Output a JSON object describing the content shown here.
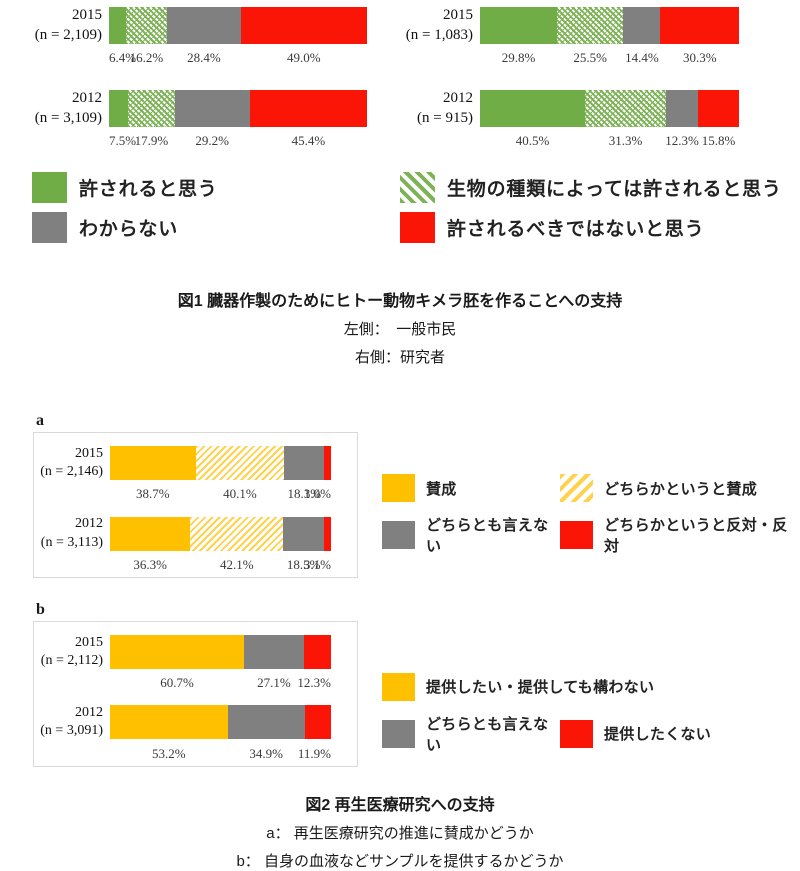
{
  "palette": {
    "green": "#70AD47",
    "green_hatch_stripe": "#7DB356",
    "gray": "#808080",
    "red": "#FB1507",
    "yellow": "#FFC000",
    "yellow_hatch_stripe": "#FFD24D",
    "box_border": "#D9D9D9",
    "pct_text": "#3A3A3A"
  },
  "figure1": {
    "caption": {
      "title": "図1 臓器作製のためにヒトー動物キメラ胚を作ることへの支持",
      "line2": "左側：　一般市民",
      "line3": "右側：研究者"
    },
    "legend": [
      {
        "swatch": "green",
        "label": "許されると思う"
      },
      {
        "swatch": "green-hatch",
        "label": "生物の種類によっては許されると思う"
      },
      {
        "swatch": "gray",
        "label": "わからない"
      },
      {
        "swatch": "red",
        "label": "許されるべきではないと思う"
      }
    ]
  },
  "figure2": {
    "subfig_a_label": "a",
    "subfig_b_label": "b",
    "caption": {
      "title": "図2 再生医療研究への支持",
      "line_a": "a： 再生医療研究の推進に賛成かどうか",
      "line_b": "b： 自身の血液などサンプルを提供するかどうか"
    },
    "legend_a": [
      {
        "swatch": "yellow",
        "label": "賛成"
      },
      {
        "swatch": "yellow-hatch",
        "label": "どちらかというと賛成"
      },
      {
        "swatch": "gray",
        "label": "どちらとも言えない"
      },
      {
        "swatch": "red",
        "label": "どちらかというと反対・反対"
      }
    ],
    "legend_b": [
      {
        "swatch": "yellow",
        "label": "提供したい・提供しても構わない",
        "span": 2
      },
      {
        "swatch": "gray",
        "label": "どちらとも言えない"
      },
      {
        "swatch": "red",
        "label": "提供したくない"
      }
    ]
  },
  "chart_data": [
    {
      "id": "fig1-left",
      "type": "bar",
      "stacked": true,
      "orientation": "horizontal",
      "group": "一般市民",
      "unit": "%",
      "xlim": [
        0,
        100
      ],
      "segment_styles": [
        "green",
        "green-hatch",
        "gray",
        "red"
      ],
      "segment_names": [
        "許されると思う",
        "生物の種類によっては許されると思う",
        "わからない",
        "許されるべきではないと思う"
      ],
      "rows": [
        {
          "year": "2015",
          "n": "(n = 2,109)",
          "values": [
            6.4,
            16.2,
            28.4,
            49.0
          ]
        },
        {
          "year": "2012",
          "n": "(n = 3,109)",
          "values": [
            7.5,
            17.9,
            29.2,
            45.4
          ]
        }
      ]
    },
    {
      "id": "fig1-right",
      "type": "bar",
      "stacked": true,
      "orientation": "horizontal",
      "group": "研究者",
      "unit": "%",
      "xlim": [
        0,
        100
      ],
      "segment_styles": [
        "green",
        "green-hatch",
        "gray",
        "red"
      ],
      "segment_names": [
        "許されると思う",
        "生物の種類によっては許されると思う",
        "わからない",
        "許されるべきではないと思う"
      ],
      "rows": [
        {
          "year": "2015",
          "n": "(n = 1,083)",
          "values": [
            29.8,
            25.5,
            14.4,
            30.3
          ]
        },
        {
          "year": "2012",
          "n": "(n = 915)",
          "values": [
            40.5,
            31.3,
            12.3,
            15.8
          ]
        }
      ]
    },
    {
      "id": "fig2-a",
      "type": "bar",
      "stacked": true,
      "orientation": "horizontal",
      "group": "再生医療研究の推進に賛成かどうか",
      "unit": "%",
      "xlim": [
        0,
        100
      ],
      "segment_styles": [
        "yellow",
        "yellow-hatch",
        "gray",
        "red"
      ],
      "segment_names": [
        "賛成",
        "どちらかというと賛成",
        "どちらとも言えない",
        "どちらかというと反対・反対"
      ],
      "rows": [
        {
          "year": "2015",
          "n": "(n = 2,146)",
          "values": [
            38.7,
            40.1,
            18.1,
            3.0
          ]
        },
        {
          "year": "2012",
          "n": "(n = 3,113)",
          "values": [
            36.3,
            42.1,
            18.5,
            3.1
          ]
        }
      ]
    },
    {
      "id": "fig2-b",
      "type": "bar",
      "stacked": true,
      "orientation": "horizontal",
      "group": "自身の血液などサンプルを提供するかどうか",
      "unit": "%",
      "xlim": [
        0,
        100
      ],
      "segment_styles": [
        "yellow",
        "gray",
        "red"
      ],
      "segment_names": [
        "提供したい・提供しても構わない",
        "どちらとも言えない",
        "提供したくない"
      ],
      "rows": [
        {
          "year": "2015",
          "n": "(n = 2,112)",
          "values": [
            60.7,
            27.1,
            12.3
          ]
        },
        {
          "year": "2012",
          "n": "(n = 3,091)",
          "values": [
            53.2,
            34.9,
            11.9
          ]
        }
      ]
    }
  ]
}
